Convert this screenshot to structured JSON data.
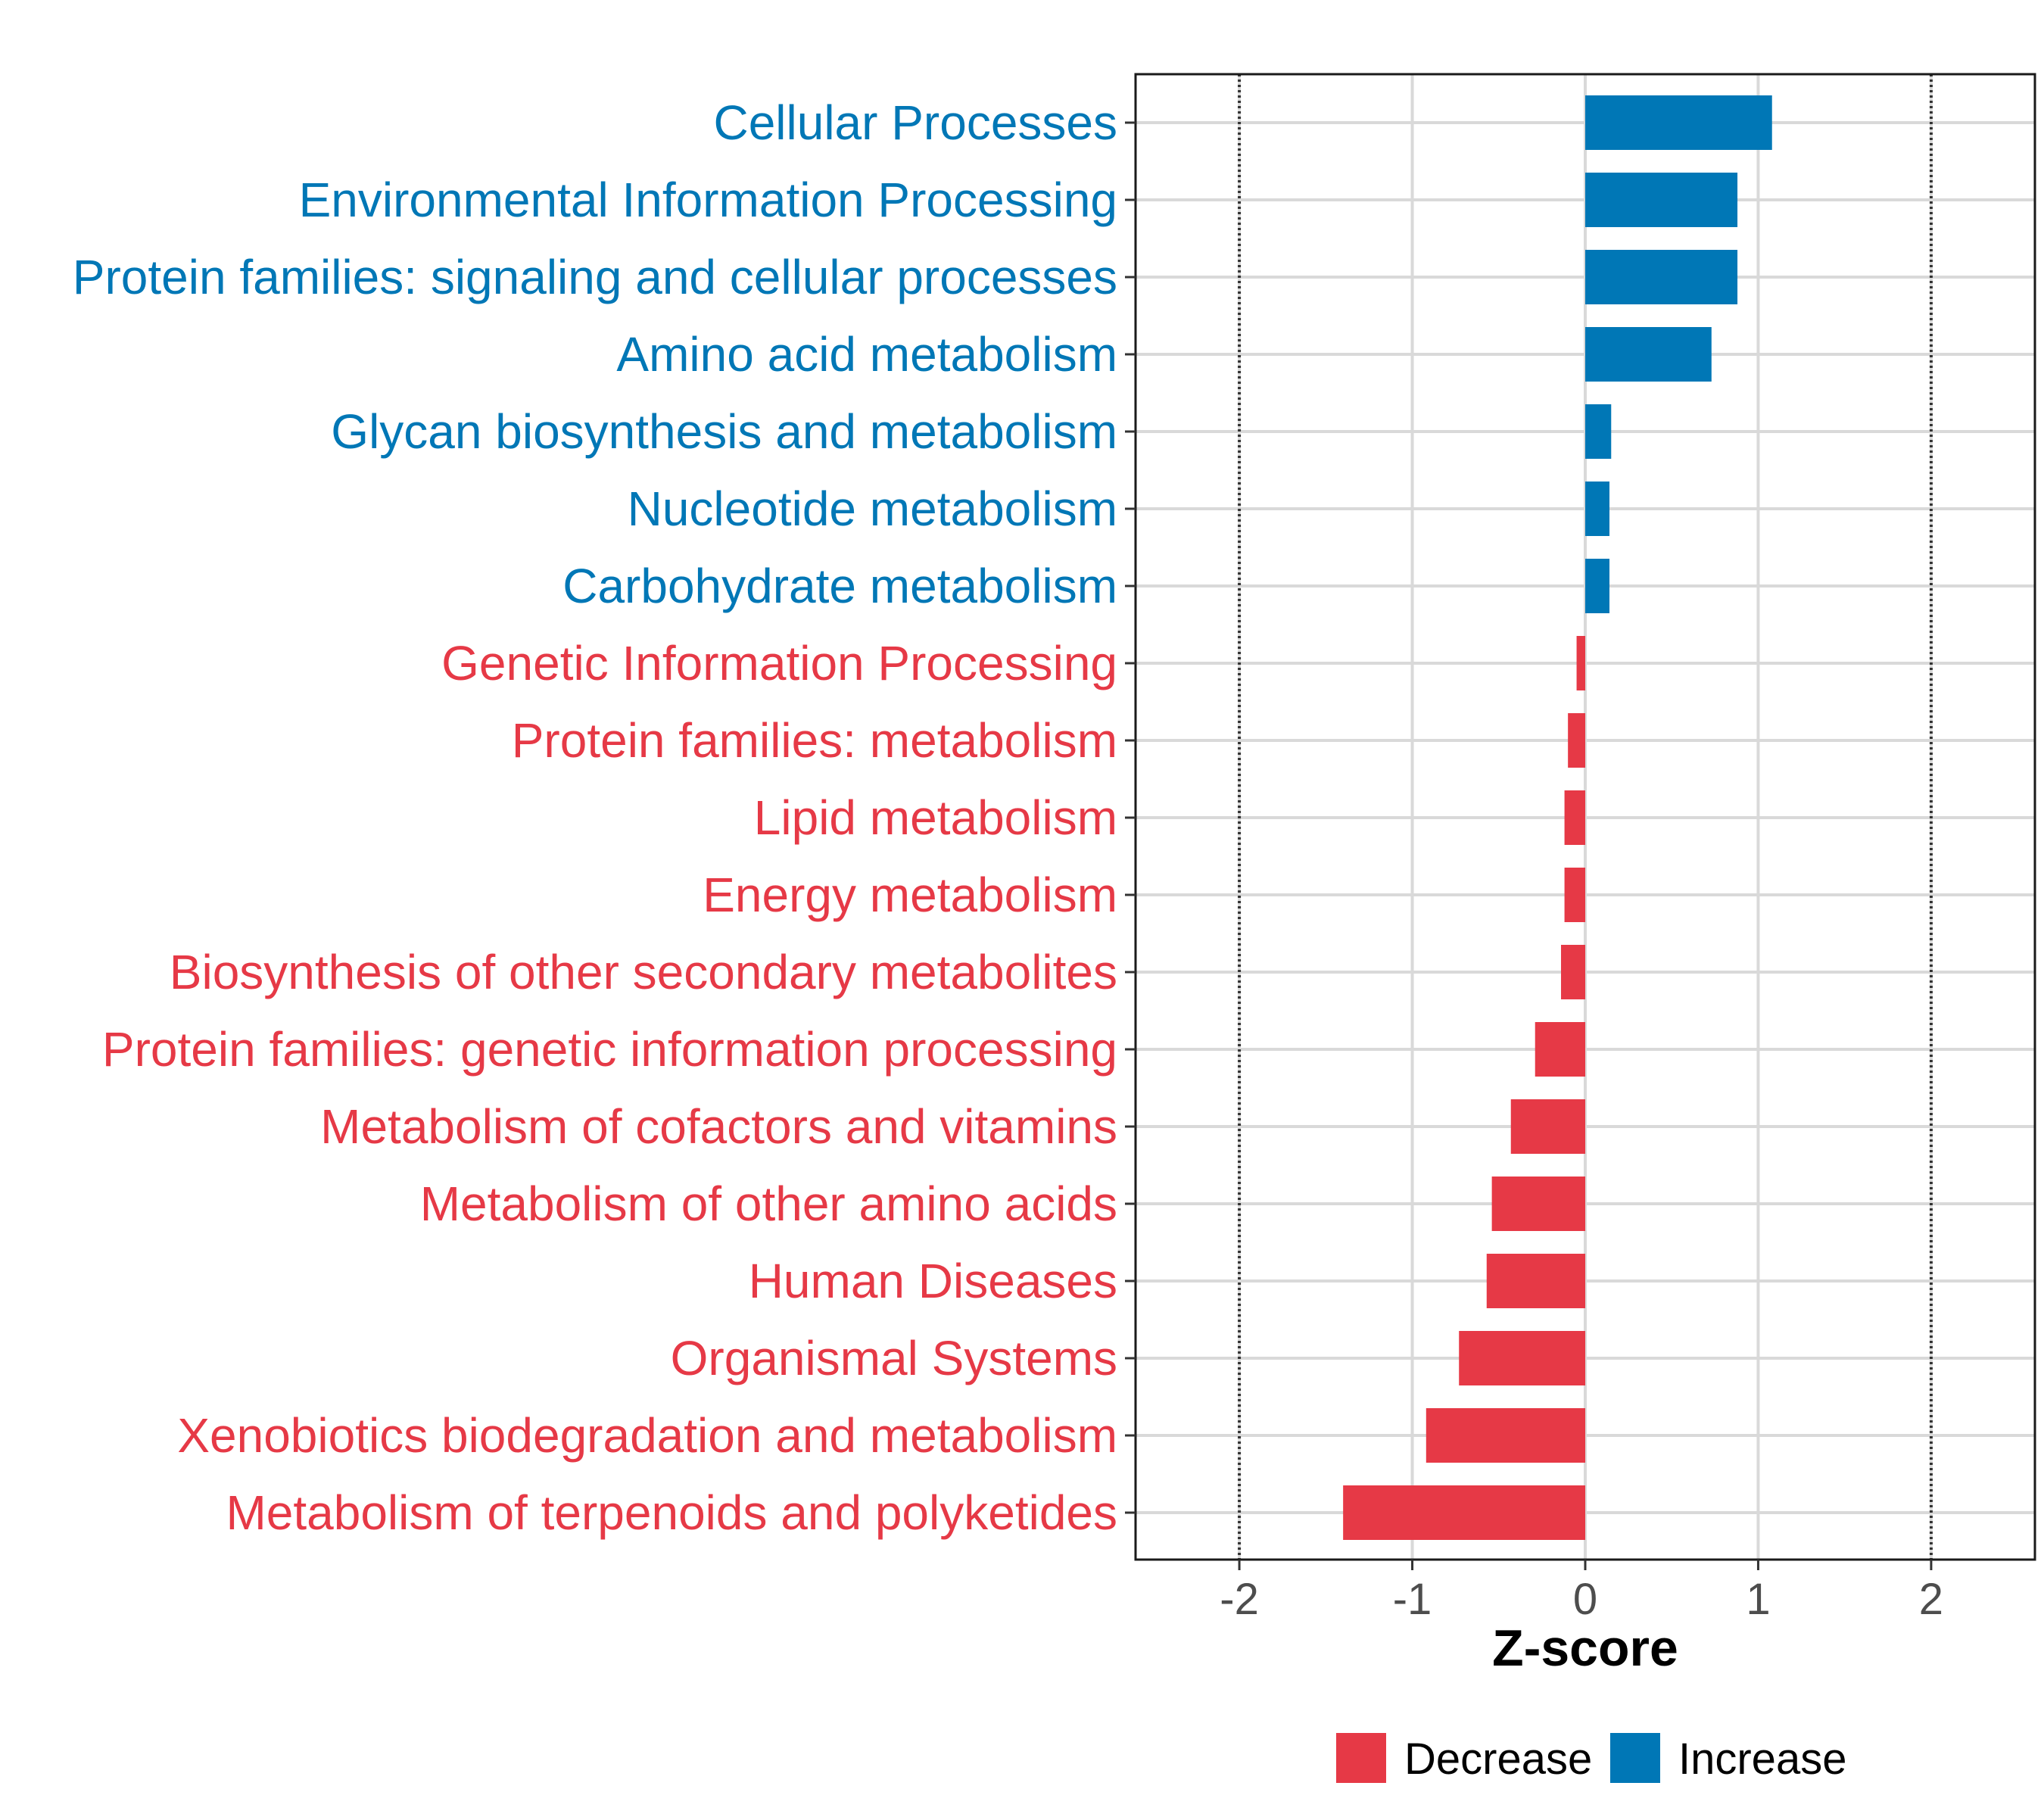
{
  "chart_data": {
    "type": "bar",
    "orientation": "horizontal",
    "xlabel": "Z-score",
    "ylabel": "",
    "xlim": [
      -2.6,
      2.6
    ],
    "xticks": [
      -2,
      -1,
      0,
      1,
      2
    ],
    "tick_labels": [
      "-2",
      "-1",
      "0",
      "1",
      "2"
    ],
    "reference_lines": [
      -2,
      2
    ],
    "grid": true,
    "legend_position": "bottom",
    "categories": [
      "Cellular Processes",
      "Environmental Information Processing",
      "Protein families: signaling and cellular processes",
      "Amino acid metabolism",
      "Glycan biosynthesis and metabolism",
      "Nucleotide metabolism",
      "Carbohydrate metabolism",
      "Genetic Information Processing",
      "Protein families: metabolism",
      "Lipid metabolism",
      "Energy metabolism",
      "Biosynthesis of other secondary metabolites",
      "Protein families: genetic information processing",
      "Metabolism of cofactors and vitamins",
      "Metabolism of other amino acids",
      "Human Diseases",
      "Organismal Systems",
      "Xenobiotics biodegradation and metabolism",
      "Metabolism of terpenoids and polyketides"
    ],
    "values": [
      1.08,
      0.88,
      0.88,
      0.73,
      0.15,
      0.14,
      0.14,
      -0.05,
      -0.1,
      -0.12,
      -0.12,
      -0.14,
      -0.29,
      -0.43,
      -0.54,
      -0.57,
      -0.73,
      -0.92,
      -1.4
    ],
    "groups": [
      "Increase",
      "Increase",
      "Increase",
      "Increase",
      "Increase",
      "Increase",
      "Increase",
      "Decrease",
      "Decrease",
      "Decrease",
      "Decrease",
      "Decrease",
      "Decrease",
      "Decrease",
      "Decrease",
      "Decrease",
      "Decrease",
      "Decrease",
      "Decrease"
    ],
    "legend": [
      {
        "name": "Decrease",
        "color": "#E63946"
      },
      {
        "name": "Increase",
        "color": "#0077B6"
      }
    ]
  }
}
